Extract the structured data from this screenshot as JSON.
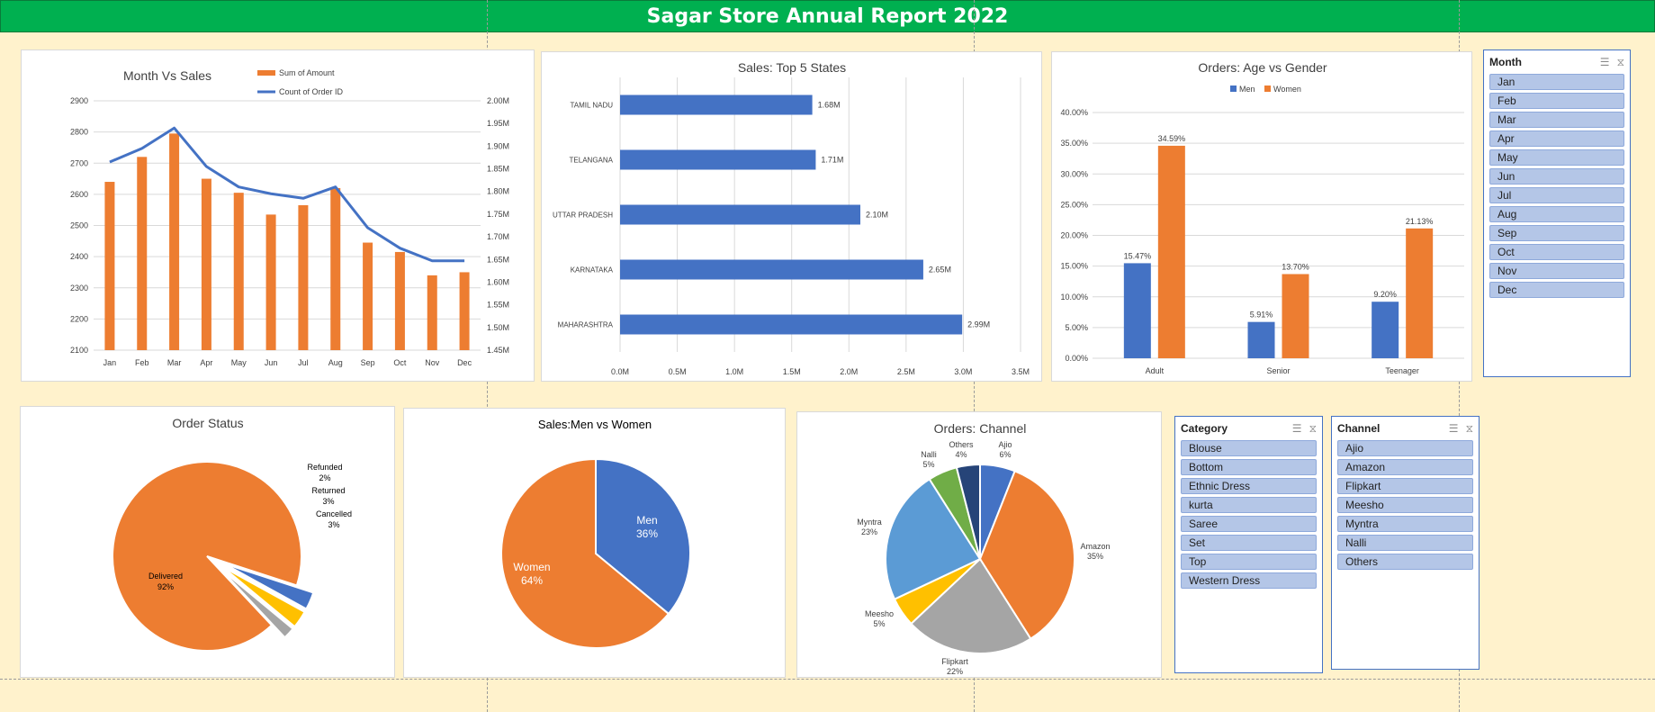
{
  "report": {
    "title": "Sagar Store Annual Report 2022"
  },
  "chart_data": [
    {
      "id": "month_sales",
      "type": "bar+line",
      "title": "Month Vs Sales",
      "categories": [
        "Jan",
        "Feb",
        "Mar",
        "Apr",
        "May",
        "Jun",
        "Jul",
        "Aug",
        "Sep",
        "Oct",
        "Nov",
        "Dec"
      ],
      "series": [
        {
          "name": "Sum of Amount",
          "type": "bar",
          "axis": "left",
          "color": "#ed7d31",
          "values": [
            2640,
            2720,
            2795,
            2650,
            2605,
            2535,
            2565,
            2620,
            2445,
            2415,
            2340,
            2350
          ]
        },
        {
          "name": "Count of Order ID",
          "type": "line",
          "axis": "right",
          "color": "#4472c4",
          "values": [
            1.865,
            1.895,
            1.94,
            1.855,
            1.81,
            1.795,
            1.785,
            1.81,
            1.72,
            1.675,
            1.647,
            1.647
          ]
        }
      ],
      "ylim_left": [
        2100,
        2900
      ],
      "yticks_left": [
        2100,
        2200,
        2300,
        2400,
        2500,
        2600,
        2700,
        2800,
        2900
      ],
      "ytick_labels_left": [
        "2100",
        "2200",
        "2300",
        "2400",
        "2500",
        "2600",
        "2700",
        "2800",
        "2900"
      ],
      "ylim_right": [
        1.45,
        2.0
      ],
      "yticks_right": [
        1.45,
        1.5,
        1.55,
        1.6,
        1.65,
        1.7,
        1.75,
        1.8,
        1.85,
        1.9,
        1.95,
        2.0
      ],
      "ytick_labels_right": [
        "1.45M",
        "1.50M",
        "1.55M",
        "1.60M",
        "1.65M",
        "1.70M",
        "1.75M",
        "1.80M",
        "1.85M",
        "1.90M",
        "1.95M",
        "2.00M"
      ],
      "legend": "top-right",
      "grid": true
    },
    {
      "id": "top_states",
      "type": "bar",
      "orientation": "horizontal",
      "title": "Sales: Top 5 States",
      "categories": [
        "TAMIL NADU",
        "TELANGANA",
        "UTTAR PRADESH",
        "KARNATAKA",
        "MAHARASHTRA"
      ],
      "values": [
        1.68,
        1.71,
        2.1,
        2.65,
        2.99
      ],
      "data_labels": [
        "1.68M",
        "1.71M",
        "2.10M",
        "2.65M",
        "2.99M"
      ],
      "color": "#4472c4",
      "xlim": [
        0,
        3.5
      ],
      "xticks": [
        0,
        0.5,
        1.0,
        1.5,
        2.0,
        2.5,
        3.0,
        3.5
      ],
      "xtick_labels": [
        "0.0M",
        "0.5M",
        "1.0M",
        "1.5M",
        "2.0M",
        "2.5M",
        "3.0M",
        "3.5M"
      ],
      "grid": true
    },
    {
      "id": "age_gender",
      "type": "bar",
      "title": "Orders: Age vs Gender",
      "categories": [
        "Adult",
        "Senior",
        "Teenager"
      ],
      "series": [
        {
          "name": "Men",
          "color": "#4472c4",
          "values": [
            15.47,
            5.91,
            9.2
          ],
          "labels": [
            "15.47%",
            "5.91%",
            "9.20%"
          ]
        },
        {
          "name": "Women",
          "color": "#ed7d31",
          "values": [
            34.59,
            13.7,
            21.13
          ],
          "labels": [
            "34.59%",
            "13.70%",
            "21.13%"
          ]
        }
      ],
      "ylim": [
        0,
        40
      ],
      "yticks": [
        0,
        5,
        10,
        15,
        20,
        25,
        30,
        35,
        40
      ],
      "ytick_labels": [
        "0.00%",
        "5.00%",
        "10.00%",
        "15.00%",
        "20.00%",
        "25.00%",
        "30.00%",
        "35.00%",
        "40.00%"
      ],
      "legend": "top",
      "grid": true
    },
    {
      "id": "order_status",
      "type": "pie",
      "title": "Order Status",
      "slices": [
        {
          "name": "Delivered",
          "value": 92,
          "label": "92%",
          "color": "#ed7d31"
        },
        {
          "name": "Cancelled",
          "value": 3,
          "label": "3%",
          "color": "#4472c4",
          "explode": true
        },
        {
          "name": "Returned",
          "value": 3,
          "label": "3%",
          "color": "#ffc000",
          "explode": true
        },
        {
          "name": "Refunded",
          "value": 2,
          "label": "2%",
          "color": "#a5a5a5",
          "explode": true
        }
      ]
    },
    {
      "id": "men_women",
      "type": "pie",
      "title": "Sales:Men vs Women",
      "slices": [
        {
          "name": "Men",
          "value": 36,
          "label": "36%",
          "color": "#4472c4"
        },
        {
          "name": "Women",
          "value": 64,
          "label": "64%",
          "color": "#ed7d31"
        }
      ]
    },
    {
      "id": "channel",
      "type": "pie",
      "title": "Orders: Channel",
      "slices": [
        {
          "name": "Ajio",
          "value": 6,
          "label": "6%",
          "color": "#4472c4"
        },
        {
          "name": "Amazon",
          "value": 35,
          "label": "35%",
          "color": "#ed7d31"
        },
        {
          "name": "Flipkart",
          "value": 22,
          "label": "22%",
          "color": "#a5a5a5"
        },
        {
          "name": "Meesho",
          "value": 5,
          "label": "5%",
          "color": "#ffc000"
        },
        {
          "name": "Myntra",
          "value": 23,
          "label": "23%",
          "color": "#5b9bd5"
        },
        {
          "name": "Nalli",
          "value": 5,
          "label": "5%",
          "color": "#70ad47"
        },
        {
          "name": "Others",
          "value": 4,
          "label": "4%",
          "color": "#264478"
        }
      ]
    }
  ],
  "slicers": {
    "month": {
      "title": "Month",
      "items": [
        "Jan",
        "Feb",
        "Mar",
        "Apr",
        "May",
        "Jun",
        "Jul",
        "Aug",
        "Sep",
        "Oct",
        "Nov",
        "Dec"
      ]
    },
    "category": {
      "title": "Category",
      "items": [
        "Blouse",
        "Bottom",
        "Ethnic Dress",
        "kurta",
        "Saree",
        "Set",
        "Top",
        "Western Dress"
      ]
    },
    "channel": {
      "title": "Channel",
      "items": [
        "Ajio",
        "Amazon",
        "Flipkart",
        "Meesho",
        "Myntra",
        "Nalli",
        "Others"
      ]
    }
  }
}
